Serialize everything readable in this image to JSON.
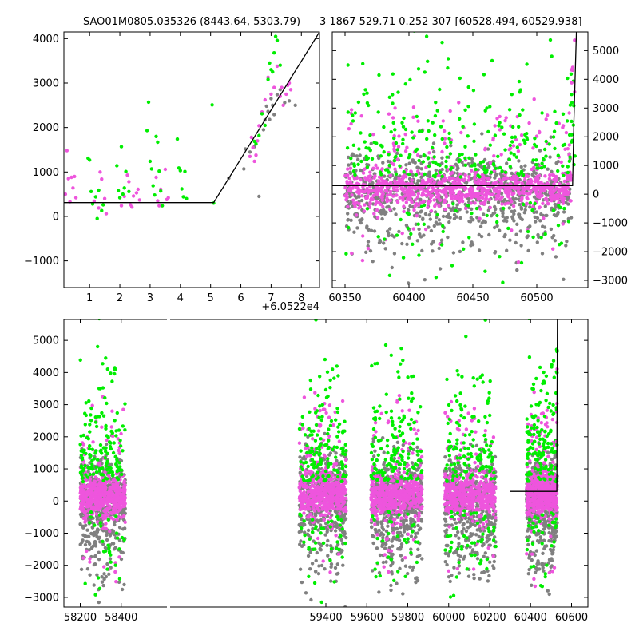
{
  "colors": {
    "background": "#ffffff",
    "axes": "#000000",
    "series_gray": "#808080",
    "series_magenta": "#ee55dd",
    "series_green": "#00ee00",
    "model_line": "#000000"
  },
  "chart_data": [
    {
      "panel": "top-left",
      "type": "scatter",
      "title": "SAO01M0805.035326 (8443.64, 5303.79)",
      "xlabel": "",
      "ylabel": "",
      "x_offset_label": "+6.0522e4",
      "xlim": [
        0.15,
        8.6
      ],
      "ylim": [
        -1600,
        4150
      ],
      "xticks": [
        1,
        2,
        3,
        4,
        5,
        6,
        7,
        8
      ],
      "yticks": [
        -1000,
        0,
        1000,
        2000,
        3000,
        4000
      ],
      "y_axis_side": "left",
      "grid": false,
      "series": [
        {
          "color": "magenta",
          "points": [
            [
              0.2,
              500
            ],
            [
              0.25,
              1480
            ],
            [
              0.3,
              850
            ],
            [
              0.35,
              330
            ],
            [
              0.4,
              880
            ],
            [
              0.45,
              640
            ],
            [
              0.5,
              900
            ],
            [
              0.55,
              420
            ],
            [
              1.15,
              340
            ],
            [
              1.3,
              190
            ],
            [
              1.35,
              1000
            ],
            [
              1.4,
              840
            ],
            [
              1.5,
              400
            ],
            [
              1.55,
              60
            ],
            [
              2.05,
              240
            ],
            [
              2.15,
              450
            ],
            [
              2.25,
              930
            ],
            [
              2.3,
              780
            ],
            [
              2.35,
              260
            ],
            [
              2.4,
              210
            ],
            [
              2.45,
              460
            ],
            [
              2.55,
              530
            ],
            [
              2.6,
              610
            ],
            [
              2.65,
              370
            ],
            [
              3.2,
              880
            ],
            [
              3.25,
              350
            ],
            [
              3.3,
              240
            ],
            [
              3.35,
              610
            ],
            [
              3.4,
              240
            ],
            [
              3.5,
              1060
            ],
            [
              3.55,
              380
            ],
            [
              3.6,
              420
            ],
            [
              6.3,
              1350
            ],
            [
              6.35,
              1780
            ],
            [
              6.4,
              1550
            ],
            [
              6.45,
              1240
            ],
            [
              6.5,
              1380
            ],
            [
              6.55,
              1700
            ],
            [
              6.6,
              2040
            ],
            [
              6.7,
              2350
            ],
            [
              6.8,
              2620
            ],
            [
              6.9,
              3130
            ],
            [
              7.0,
              2750
            ],
            [
              7.1,
              2900
            ],
            [
              7.2,
              3380
            ],
            [
              7.3,
              2700
            ],
            [
              7.35,
              2900
            ],
            [
              7.4,
              2500
            ],
            [
              7.5,
              2750
            ],
            [
              7.55,
              2950
            ],
            [
              7.6,
              3000
            ],
            [
              7.65,
              2850
            ]
          ]
        },
        {
          "color": "green",
          "points": [
            [
              0.95,
              1310
            ],
            [
              1.0,
              1270
            ],
            [
              1.05,
              560
            ],
            [
              1.1,
              280
            ],
            [
              1.2,
              440
            ],
            [
              1.25,
              -50
            ],
            [
              1.3,
              590
            ],
            [
              1.4,
              130
            ],
            [
              1.45,
              260
            ],
            [
              1.9,
              1140
            ],
            [
              1.95,
              580
            ],
            [
              2.0,
              420
            ],
            [
              2.05,
              1570
            ],
            [
              2.1,
              500
            ],
            [
              2.15,
              640
            ],
            [
              2.2,
              1010
            ],
            [
              2.3,
              560
            ],
            [
              2.9,
              1930
            ],
            [
              2.95,
              2570
            ],
            [
              3.0,
              1240
            ],
            [
              3.05,
              1070
            ],
            [
              3.1,
              690
            ],
            [
              3.15,
              480
            ],
            [
              3.2,
              1800
            ],
            [
              3.25,
              1670
            ],
            [
              3.3,
              1020
            ],
            [
              3.35,
              570
            ],
            [
              3.4,
              240
            ],
            [
              3.9,
              1740
            ],
            [
              3.95,
              1090
            ],
            [
              4.0,
              1030
            ],
            [
              4.05,
              620
            ],
            [
              4.1,
              440
            ],
            [
              4.15,
              1010
            ],
            [
              4.2,
              400
            ],
            [
              5.05,
              2510
            ],
            [
              5.1,
              300
            ],
            [
              6.45,
              1690
            ],
            [
              6.5,
              1630
            ],
            [
              6.6,
              1820
            ],
            [
              6.7,
              2310
            ],
            [
              6.8,
              2050
            ],
            [
              6.9,
              3080
            ],
            [
              6.95,
              3450
            ],
            [
              7.0,
              3300
            ],
            [
              7.05,
              3250
            ],
            [
              7.1,
              3680
            ],
            [
              7.15,
              4050
            ],
            [
              7.2,
              3960
            ],
            [
              7.3,
              3400
            ]
          ]
        },
        {
          "color": "gray",
          "points": [
            [
              5.6,
              860
            ],
            [
              6.1,
              1070
            ],
            [
              6.15,
              1520
            ],
            [
              6.3,
              1450
            ],
            [
              6.45,
              1570
            ],
            [
              6.6,
              450
            ],
            [
              6.75,
              1950
            ],
            [
              6.8,
              2170
            ],
            [
              6.85,
              2480
            ],
            [
              6.9,
              2360
            ],
            [
              6.95,
              2180
            ],
            [
              7.0,
              2650
            ],
            [
              7.05,
              2500
            ],
            [
              7.1,
              2290
            ],
            [
              7.2,
              2740
            ],
            [
              7.3,
              2850
            ],
            [
              7.45,
              2560
            ],
            [
              7.6,
              2600
            ],
            [
              7.8,
              2500
            ]
          ]
        }
      ],
      "model_line": [
        [
          0.15,
          310
        ],
        [
          5.1,
          310
        ],
        [
          8.6,
          4150
        ]
      ]
    },
    {
      "panel": "top-right",
      "type": "scatter",
      "title": "3 1867 529.71 0.252 307 [60528.494, 60529.938]",
      "xlabel": "",
      "ylabel": "",
      "xlim": [
        60340,
        60540
      ],
      "ylim": [
        -3250,
        5650
      ],
      "xticks": [
        60350,
        60400,
        60450,
        60500
      ],
      "yticks": [
        -3000,
        -2000,
        -1000,
        0,
        1000,
        2000,
        3000,
        4000,
        5000
      ],
      "y_axis_side": "right",
      "grid": false,
      "model_line": [
        [
          60340,
          300
        ],
        [
          60528,
          300
        ],
        [
          60529,
          2500
        ],
        [
          60531,
          5650
        ]
      ]
    },
    {
      "panel": "bottom",
      "type": "scatter",
      "title": "",
      "xlabel": "",
      "ylabel": "",
      "xlim": [
        58120,
        60680
      ],
      "ylim": [
        -3300,
        5650
      ],
      "xticks": [
        58200,
        58400,
        59400,
        59600,
        59800,
        60000,
        60200,
        60400,
        60600
      ],
      "yticks": [
        -3000,
        -2000,
        -1000,
        0,
        1000,
        2000,
        3000,
        4000,
        5000
      ],
      "y_axis_side": "left",
      "grid": false,
      "seasons_note_ranges": [
        [
          58200,
          58420
        ],
        [
          59270,
          59500
        ],
        [
          59620,
          59870
        ],
        [
          59980,
          60230
        ],
        [
          60380,
          60530
        ]
      ],
      "model_line": [
        [
          60300,
          300
        ],
        [
          60528,
          300
        ],
        [
          60529,
          2500
        ],
        [
          60531,
          5650
        ]
      ]
    }
  ]
}
